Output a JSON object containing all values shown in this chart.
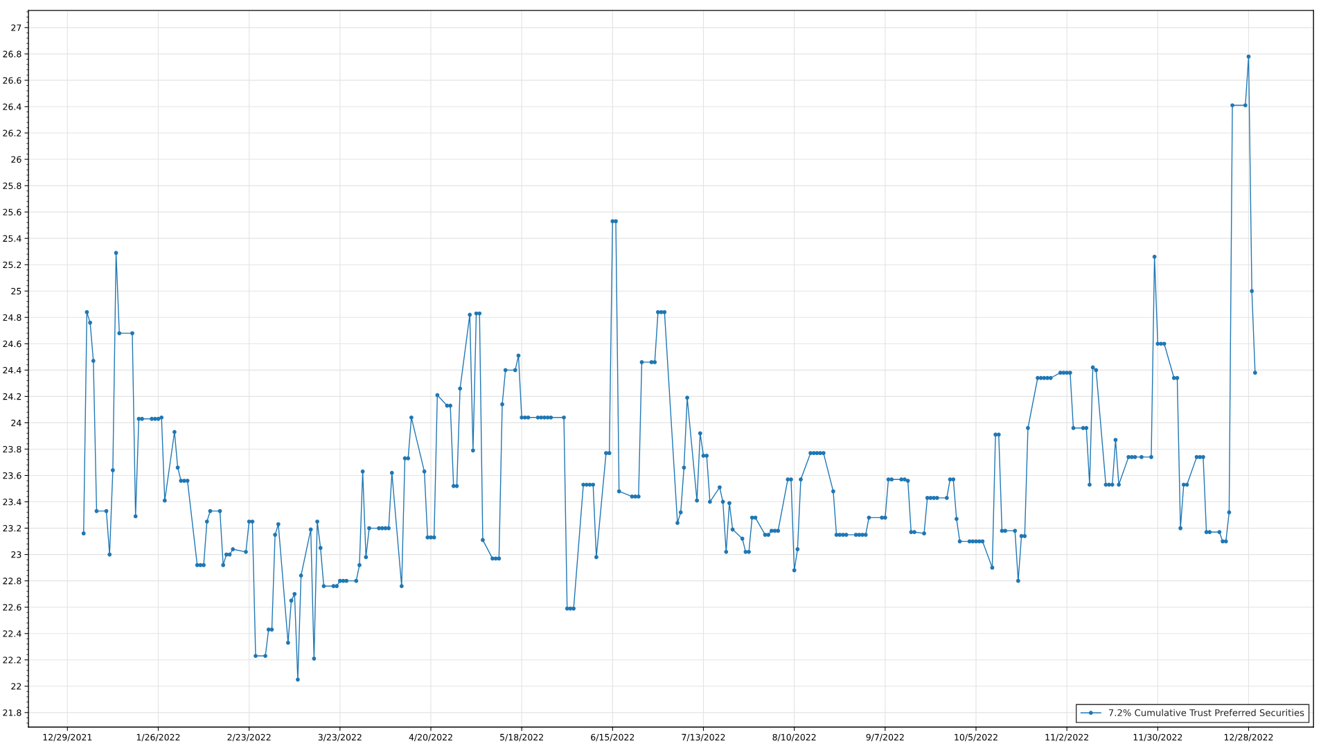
{
  "chart_data": {
    "type": "line",
    "x": [
      "2022-01-03",
      "2022-01-04",
      "2022-01-05",
      "2022-01-06",
      "2022-01-07",
      "2022-01-10",
      "2022-01-11",
      "2022-01-12",
      "2022-01-13",
      "2022-01-14",
      "2022-01-18",
      "2022-01-19",
      "2022-01-20",
      "2022-01-21",
      "2022-01-24",
      "2022-01-25",
      "2022-01-26",
      "2022-01-27",
      "2022-01-28",
      "2022-01-31",
      "2022-02-01",
      "2022-02-02",
      "2022-02-03",
      "2022-02-04",
      "2022-02-07",
      "2022-02-08",
      "2022-02-09",
      "2022-02-10",
      "2022-02-11",
      "2022-02-14",
      "2022-02-15",
      "2022-02-16",
      "2022-02-17",
      "2022-02-18",
      "2022-02-22",
      "2022-02-23",
      "2022-02-24",
      "2022-02-25",
      "2022-02-28",
      "2022-03-01",
      "2022-03-02",
      "2022-03-03",
      "2022-03-04",
      "2022-03-07",
      "2022-03-08",
      "2022-03-09",
      "2022-03-10",
      "2022-03-11",
      "2022-03-14",
      "2022-03-15",
      "2022-03-16",
      "2022-03-17",
      "2022-03-18",
      "2022-03-21",
      "2022-03-22",
      "2022-03-23",
      "2022-03-24",
      "2022-03-25",
      "2022-03-28",
      "2022-03-29",
      "2022-03-30",
      "2022-03-31",
      "2022-04-01",
      "2022-04-04",
      "2022-04-05",
      "2022-04-06",
      "2022-04-07",
      "2022-04-08",
      "2022-04-11",
      "2022-04-12",
      "2022-04-13",
      "2022-04-14",
      "2022-04-18",
      "2022-04-19",
      "2022-04-20",
      "2022-04-21",
      "2022-04-22",
      "2022-04-25",
      "2022-04-26",
      "2022-04-27",
      "2022-04-28",
      "2022-04-29",
      "2022-05-02",
      "2022-05-03",
      "2022-05-04",
      "2022-05-05",
      "2022-05-06",
      "2022-05-09",
      "2022-05-10",
      "2022-05-11",
      "2022-05-12",
      "2022-05-13",
      "2022-05-16",
      "2022-05-17",
      "2022-05-18",
      "2022-05-19",
      "2022-05-20",
      "2022-05-23",
      "2022-05-24",
      "2022-05-25",
      "2022-05-26",
      "2022-05-27",
      "2022-05-31",
      "2022-06-01",
      "2022-06-02",
      "2022-06-03",
      "2022-06-06",
      "2022-06-07",
      "2022-06-08",
      "2022-06-09",
      "2022-06-10",
      "2022-06-13",
      "2022-06-14",
      "2022-06-15",
      "2022-06-16",
      "2022-06-17",
      "2022-06-21",
      "2022-06-22",
      "2022-06-23",
      "2022-06-24",
      "2022-06-27",
      "2022-06-28",
      "2022-06-29",
      "2022-06-30",
      "2022-07-01",
      "2022-07-05",
      "2022-07-06",
      "2022-07-07",
      "2022-07-08",
      "2022-07-11",
      "2022-07-12",
      "2022-07-13",
      "2022-07-14",
      "2022-07-15",
      "2022-07-18",
      "2022-07-19",
      "2022-07-20",
      "2022-07-21",
      "2022-07-22",
      "2022-07-25",
      "2022-07-26",
      "2022-07-27",
      "2022-07-28",
      "2022-07-29",
      "2022-08-01",
      "2022-08-02",
      "2022-08-03",
      "2022-08-04",
      "2022-08-05",
      "2022-08-08",
      "2022-08-09",
      "2022-08-10",
      "2022-08-11",
      "2022-08-12",
      "2022-08-15",
      "2022-08-16",
      "2022-08-17",
      "2022-08-18",
      "2022-08-19",
      "2022-08-22",
      "2022-08-23",
      "2022-08-24",
      "2022-08-25",
      "2022-08-26",
      "2022-08-29",
      "2022-08-30",
      "2022-08-31",
      "2022-09-01",
      "2022-09-02",
      "2022-09-06",
      "2022-09-07",
      "2022-09-08",
      "2022-09-09",
      "2022-09-12",
      "2022-09-13",
      "2022-09-14",
      "2022-09-15",
      "2022-09-16",
      "2022-09-19",
      "2022-09-20",
      "2022-09-21",
      "2022-09-22",
      "2022-09-23",
      "2022-09-26",
      "2022-09-27",
      "2022-09-28",
      "2022-09-29",
      "2022-09-30",
      "2022-10-03",
      "2022-10-04",
      "2022-10-05",
      "2022-10-06",
      "2022-10-07",
      "2022-10-10",
      "2022-10-11",
      "2022-10-12",
      "2022-10-13",
      "2022-10-14",
      "2022-10-17",
      "2022-10-18",
      "2022-10-19",
      "2022-10-20",
      "2022-10-21",
      "2022-10-24",
      "2022-10-25",
      "2022-10-26",
      "2022-10-27",
      "2022-10-28",
      "2022-10-31",
      "2022-11-01",
      "2022-11-02",
      "2022-11-03",
      "2022-11-04",
      "2022-11-07",
      "2022-11-08",
      "2022-11-09",
      "2022-11-10",
      "2022-11-11",
      "2022-11-14",
      "2022-11-15",
      "2022-11-16",
      "2022-11-17",
      "2022-11-18",
      "2022-11-21",
      "2022-11-22",
      "2022-11-23",
      "2022-11-25",
      "2022-11-28",
      "2022-11-29",
      "2022-11-30",
      "2022-12-01",
      "2022-12-02",
      "2022-12-05",
      "2022-12-06",
      "2022-12-07",
      "2022-12-08",
      "2022-12-09",
      "2022-12-12",
      "2022-12-13",
      "2022-12-14",
      "2022-12-15",
      "2022-12-16",
      "2022-12-19",
      "2022-12-20",
      "2022-12-21",
      "2022-12-22",
      "2022-12-23",
      "2022-12-27",
      "2022-12-28",
      "2022-12-29",
      "2022-12-30"
    ],
    "series": [
      {
        "name": "7.2% Cumulative Trust Preferred Securities",
        "color": "#1f77b4",
        "values": [
          23.16,
          24.84,
          24.76,
          24.47,
          23.33,
          23.33,
          23.0,
          23.64,
          25.29,
          24.68,
          24.68,
          23.29,
          24.03,
          24.03,
          24.03,
          24.03,
          24.03,
          24.04,
          23.41,
          23.93,
          23.66,
          23.56,
          23.56,
          23.56,
          22.92,
          22.92,
          22.92,
          23.25,
          23.33,
          23.33,
          22.92,
          23.0,
          23.0,
          23.04,
          23.02,
          23.25,
          23.25,
          22.23,
          22.23,
          22.43,
          22.43,
          23.15,
          23.23,
          22.33,
          22.65,
          22.7,
          22.05,
          22.84,
          23.19,
          22.21,
          23.25,
          23.05,
          22.76,
          22.76,
          22.76,
          22.8,
          22.8,
          22.8,
          22.8,
          22.92,
          23.63,
          22.98,
          23.2,
          23.2,
          23.2,
          23.2,
          23.2,
          23.62,
          22.76,
          23.73,
          23.73,
          24.04,
          23.63,
          23.13,
          23.13,
          23.13,
          24.21,
          24.13,
          24.13,
          23.52,
          23.52,
          24.26,
          24.82,
          23.79,
          24.83,
          24.83,
          23.11,
          22.97,
          22.97,
          22.97,
          24.14,
          24.4,
          24.4,
          24.51,
          24.04,
          24.04,
          24.04,
          24.04,
          24.04,
          24.04,
          24.04,
          24.04,
          24.04,
          22.59,
          22.59,
          22.59,
          23.53,
          23.53,
          23.53,
          23.53,
          22.98,
          23.77,
          23.77,
          25.53,
          25.53,
          23.48,
          23.44,
          23.44,
          23.44,
          24.46,
          24.46,
          24.46,
          24.84,
          24.84,
          24.84,
          23.24,
          23.32,
          23.66,
          24.19,
          23.41,
          23.92,
          23.75,
          23.75,
          23.4,
          23.51,
          23.4,
          23.02,
          23.39,
          23.19,
          23.12,
          23.02,
          23.02,
          23.28,
          23.28,
          23.15,
          23.15,
          23.18,
          23.18,
          23.18,
          23.57,
          23.57,
          22.88,
          23.04,
          23.57,
          23.77,
          23.77,
          23.77,
          23.77,
          23.77,
          23.48,
          23.15,
          23.15,
          23.15,
          23.15,
          23.15,
          23.15,
          23.15,
          23.15,
          23.28,
          23.28,
          23.28,
          23.57,
          23.57,
          23.57,
          23.57,
          23.56,
          23.17,
          23.17,
          23.16,
          23.43,
          23.43,
          23.43,
          23.43,
          23.43,
          23.57,
          23.57,
          23.27,
          23.1,
          23.1,
          23.1,
          23.1,
          23.1,
          23.1,
          22.9,
          23.91,
          23.91,
          23.18,
          23.18,
          23.18,
          22.8,
          23.14,
          23.14,
          23.96,
          24.34,
          24.34,
          24.34,
          24.34,
          24.34,
          24.38,
          24.38,
          24.38,
          24.38,
          23.96,
          23.96,
          23.96,
          23.53,
          24.42,
          24.4,
          23.53,
          23.53,
          23.53,
          23.87,
          23.53,
          23.74,
          23.74,
          23.74,
          23.74,
          23.74,
          25.26,
          24.6,
          24.6,
          24.6,
          24.34,
          24.34,
          23.2,
          23.53,
          23.53,
          23.74,
          23.74,
          23.74,
          23.17,
          23.17,
          23.17,
          23.1,
          23.1,
          23.32,
          26.41,
          26.41,
          26.78,
          25.0,
          24.38
        ]
      }
    ],
    "xlim": [
      "2021-12-17",
      "2023-01-17"
    ],
    "xticks": [
      {
        "value": "2021-12-29",
        "label": "12/29/2021"
      },
      {
        "value": "2022-01-26",
        "label": "1/26/2022"
      },
      {
        "value": "2022-02-23",
        "label": "2/23/2022"
      },
      {
        "value": "2022-03-23",
        "label": "3/23/2022"
      },
      {
        "value": "2022-04-20",
        "label": "4/20/2022"
      },
      {
        "value": "2022-05-18",
        "label": "5/18/2022"
      },
      {
        "value": "2022-06-15",
        "label": "6/15/2022"
      },
      {
        "value": "2022-07-13",
        "label": "7/13/2022"
      },
      {
        "value": "2022-08-10",
        "label": "8/10/2022"
      },
      {
        "value": "2022-09-07",
        "label": "9/7/2022"
      },
      {
        "value": "2022-10-05",
        "label": "10/5/2022"
      },
      {
        "value": "2022-11-02",
        "label": "11/2/2022"
      },
      {
        "value": "2022-11-30",
        "label": "11/30/2022"
      },
      {
        "value": "2022-12-28",
        "label": "12/28/2022"
      }
    ],
    "ylim": [
      21.69,
      27.13
    ],
    "yticks": [
      21.8,
      22,
      22.2,
      22.4,
      22.6,
      22.8,
      23,
      23.2,
      23.4,
      23.6,
      23.8,
      24,
      24.2,
      24.4,
      24.6,
      24.8,
      25,
      25.2,
      25.4,
      25.6,
      25.8,
      26,
      26.2,
      26.4,
      26.6,
      26.8,
      27
    ],
    "grid": true,
    "legend": "bottom right",
    "marker": "circle",
    "line_style": "solid"
  }
}
